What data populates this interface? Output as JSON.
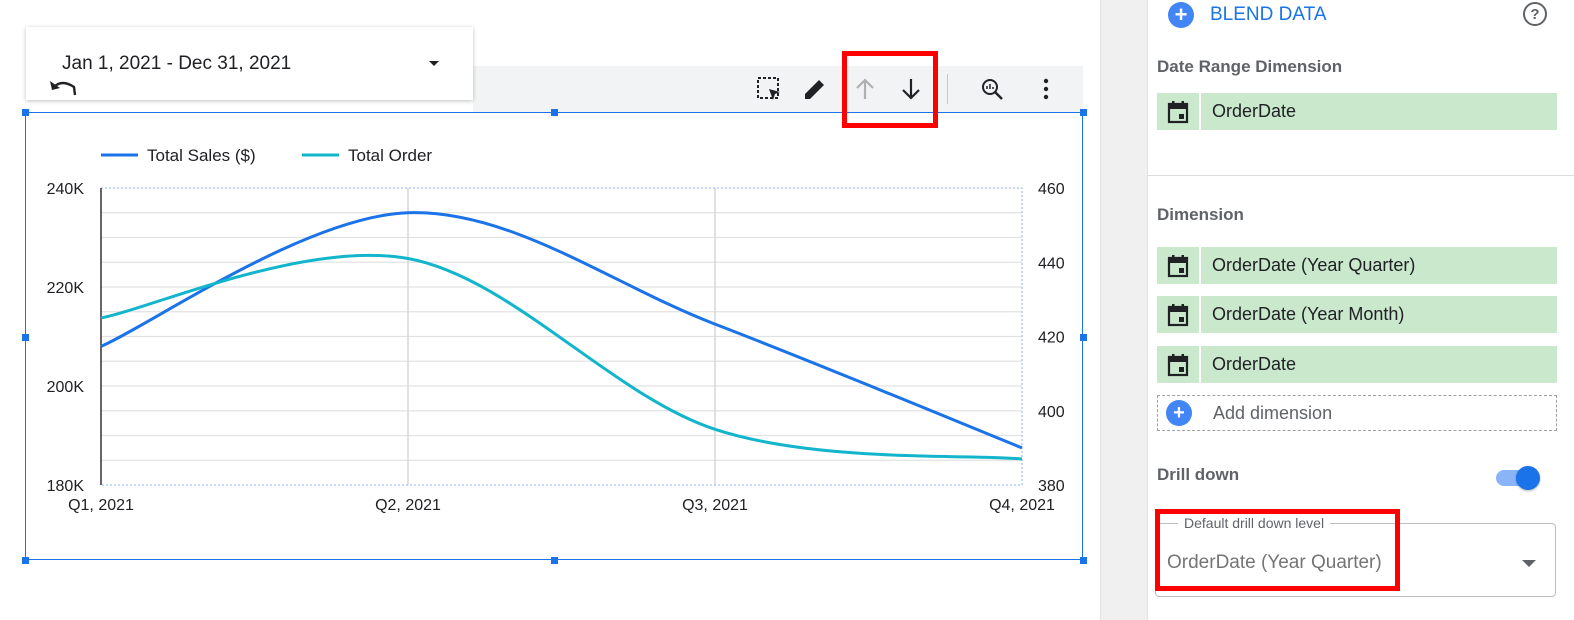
{
  "toolbar": {
    "date_range": "Jan 1, 2021 - Dec 31, 2021",
    "icons": [
      "undo-icon",
      "select-icon",
      "edit-icon",
      "drill-up-icon",
      "drill-down-icon",
      "explore-icon",
      "more-icon"
    ]
  },
  "colors": {
    "series_sales": "#1a73e8",
    "series_orders": "#12b5cb",
    "selection": "#1a73e8",
    "chip_bg": "#c9e8cc",
    "highlight": "#ff0000"
  },
  "chart_data": {
    "type": "line",
    "categories": [
      "Q1, 2021",
      "Q2, 2021",
      "Q3, 2021",
      "Q4, 2021"
    ],
    "series": [
      {
        "name": "Total Sales ($)",
        "axis": "left",
        "values": [
          208000,
          235000,
          212500,
          187500
        ]
      },
      {
        "name": "Total Order",
        "axis": "right",
        "values": [
          425,
          441,
          395,
          387
        ]
      }
    ],
    "y_left": {
      "ticks": [
        "240K",
        "220K",
        "200K",
        "180K"
      ],
      "range": [
        180000,
        240000
      ]
    },
    "y_right": {
      "ticks": [
        "460",
        "440",
        "420",
        "400",
        "380"
      ],
      "range": [
        380,
        460
      ]
    },
    "grid": true,
    "legend_position": "top-left",
    "smooth": true
  },
  "panel": {
    "blend_label": "BLEND DATA",
    "date_range_title": "Date Range Dimension",
    "date_range_field": "OrderDate",
    "dimension_title": "Dimension",
    "dimensions": [
      "OrderDate (Year Quarter)",
      "OrderDate (Year Month)",
      "OrderDate"
    ],
    "add_dimension": "Add dimension",
    "drill_down_title": "Drill down",
    "drill_down_enabled": true,
    "default_level_label": "Default drill down level",
    "default_level_value": "OrderDate (Year Quarter)"
  }
}
